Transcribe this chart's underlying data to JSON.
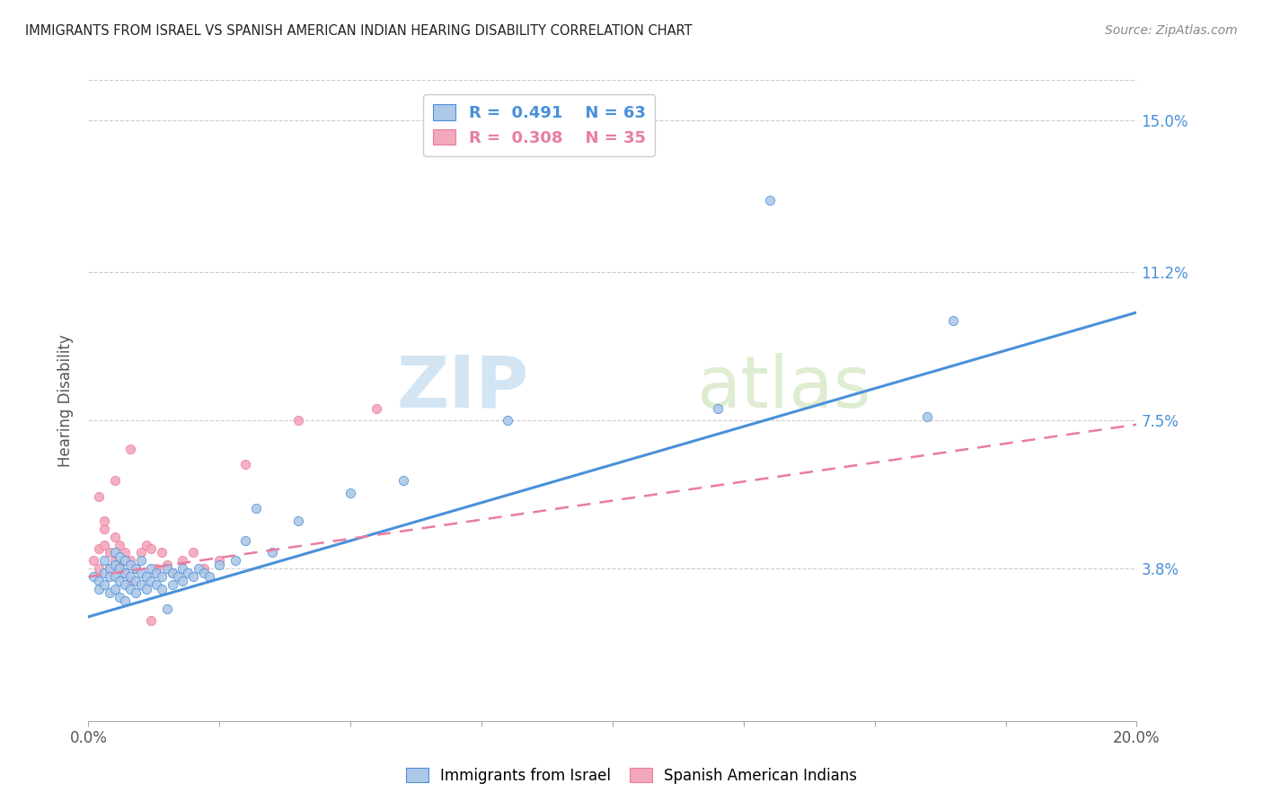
{
  "title": "IMMIGRANTS FROM ISRAEL VS SPANISH AMERICAN INDIAN HEARING DISABILITY CORRELATION CHART",
  "source": "Source: ZipAtlas.com",
  "ylabel": "Hearing Disability",
  "xlim": [
    0.0,
    0.2
  ],
  "ylim": [
    0.0,
    0.16
  ],
  "yticks": [
    0.038,
    0.075,
    0.112,
    0.15
  ],
  "ytick_labels": [
    "3.8%",
    "7.5%",
    "11.2%",
    "15.0%"
  ],
  "xticks": [
    0.0,
    0.025,
    0.05,
    0.075,
    0.1,
    0.125,
    0.15,
    0.175,
    0.2
  ],
  "color_blue": "#aec8e8",
  "color_pink": "#f4a8bc",
  "line_color_blue": "#4a90d9",
  "line_color_pink": "#e87da0",
  "watermark_line1": "ZIP",
  "watermark_line2": "atlas",
  "blue_scatter_x": [
    0.001,
    0.002,
    0.002,
    0.003,
    0.003,
    0.003,
    0.004,
    0.004,
    0.004,
    0.005,
    0.005,
    0.005,
    0.005,
    0.006,
    0.006,
    0.006,
    0.006,
    0.007,
    0.007,
    0.007,
    0.007,
    0.008,
    0.008,
    0.008,
    0.009,
    0.009,
    0.009,
    0.01,
    0.01,
    0.01,
    0.011,
    0.011,
    0.012,
    0.012,
    0.013,
    0.013,
    0.014,
    0.014,
    0.015,
    0.015,
    0.016,
    0.016,
    0.017,
    0.018,
    0.018,
    0.019,
    0.02,
    0.021,
    0.022,
    0.023,
    0.025,
    0.028,
    0.03,
    0.032,
    0.035,
    0.04,
    0.05,
    0.06,
    0.08,
    0.12,
    0.13,
    0.16,
    0.165
  ],
  "blue_scatter_y": [
    0.036,
    0.035,
    0.033,
    0.04,
    0.037,
    0.034,
    0.038,
    0.036,
    0.032,
    0.042,
    0.039,
    0.036,
    0.033,
    0.041,
    0.038,
    0.035,
    0.031,
    0.04,
    0.037,
    0.034,
    0.03,
    0.039,
    0.036,
    0.033,
    0.038,
    0.035,
    0.032,
    0.04,
    0.037,
    0.034,
    0.036,
    0.033,
    0.038,
    0.035,
    0.037,
    0.034,
    0.036,
    0.033,
    0.038,
    0.028,
    0.037,
    0.034,
    0.036,
    0.038,
    0.035,
    0.037,
    0.036,
    0.038,
    0.037,
    0.036,
    0.039,
    0.04,
    0.045,
    0.053,
    0.042,
    0.05,
    0.057,
    0.06,
    0.075,
    0.078,
    0.13,
    0.076,
    0.1
  ],
  "pink_scatter_x": [
    0.001,
    0.002,
    0.002,
    0.003,
    0.003,
    0.004,
    0.004,
    0.005,
    0.005,
    0.006,
    0.006,
    0.007,
    0.007,
    0.008,
    0.008,
    0.009,
    0.01,
    0.011,
    0.012,
    0.013,
    0.014,
    0.015,
    0.016,
    0.018,
    0.02,
    0.022,
    0.025,
    0.03,
    0.04,
    0.055,
    0.002,
    0.003,
    0.005,
    0.008,
    0.012
  ],
  "pink_scatter_y": [
    0.04,
    0.038,
    0.043,
    0.048,
    0.044,
    0.042,
    0.038,
    0.046,
    0.04,
    0.044,
    0.039,
    0.042,
    0.037,
    0.04,
    0.035,
    0.038,
    0.042,
    0.044,
    0.043,
    0.038,
    0.042,
    0.039,
    0.037,
    0.04,
    0.042,
    0.038,
    0.04,
    0.064,
    0.075,
    0.078,
    0.056,
    0.05,
    0.06,
    0.068,
    0.025
  ],
  "blue_trend_y_start": 0.026,
  "blue_trend_y_end": 0.102,
  "pink_trend_y_start": 0.036,
  "pink_trend_y_end": 0.074
}
